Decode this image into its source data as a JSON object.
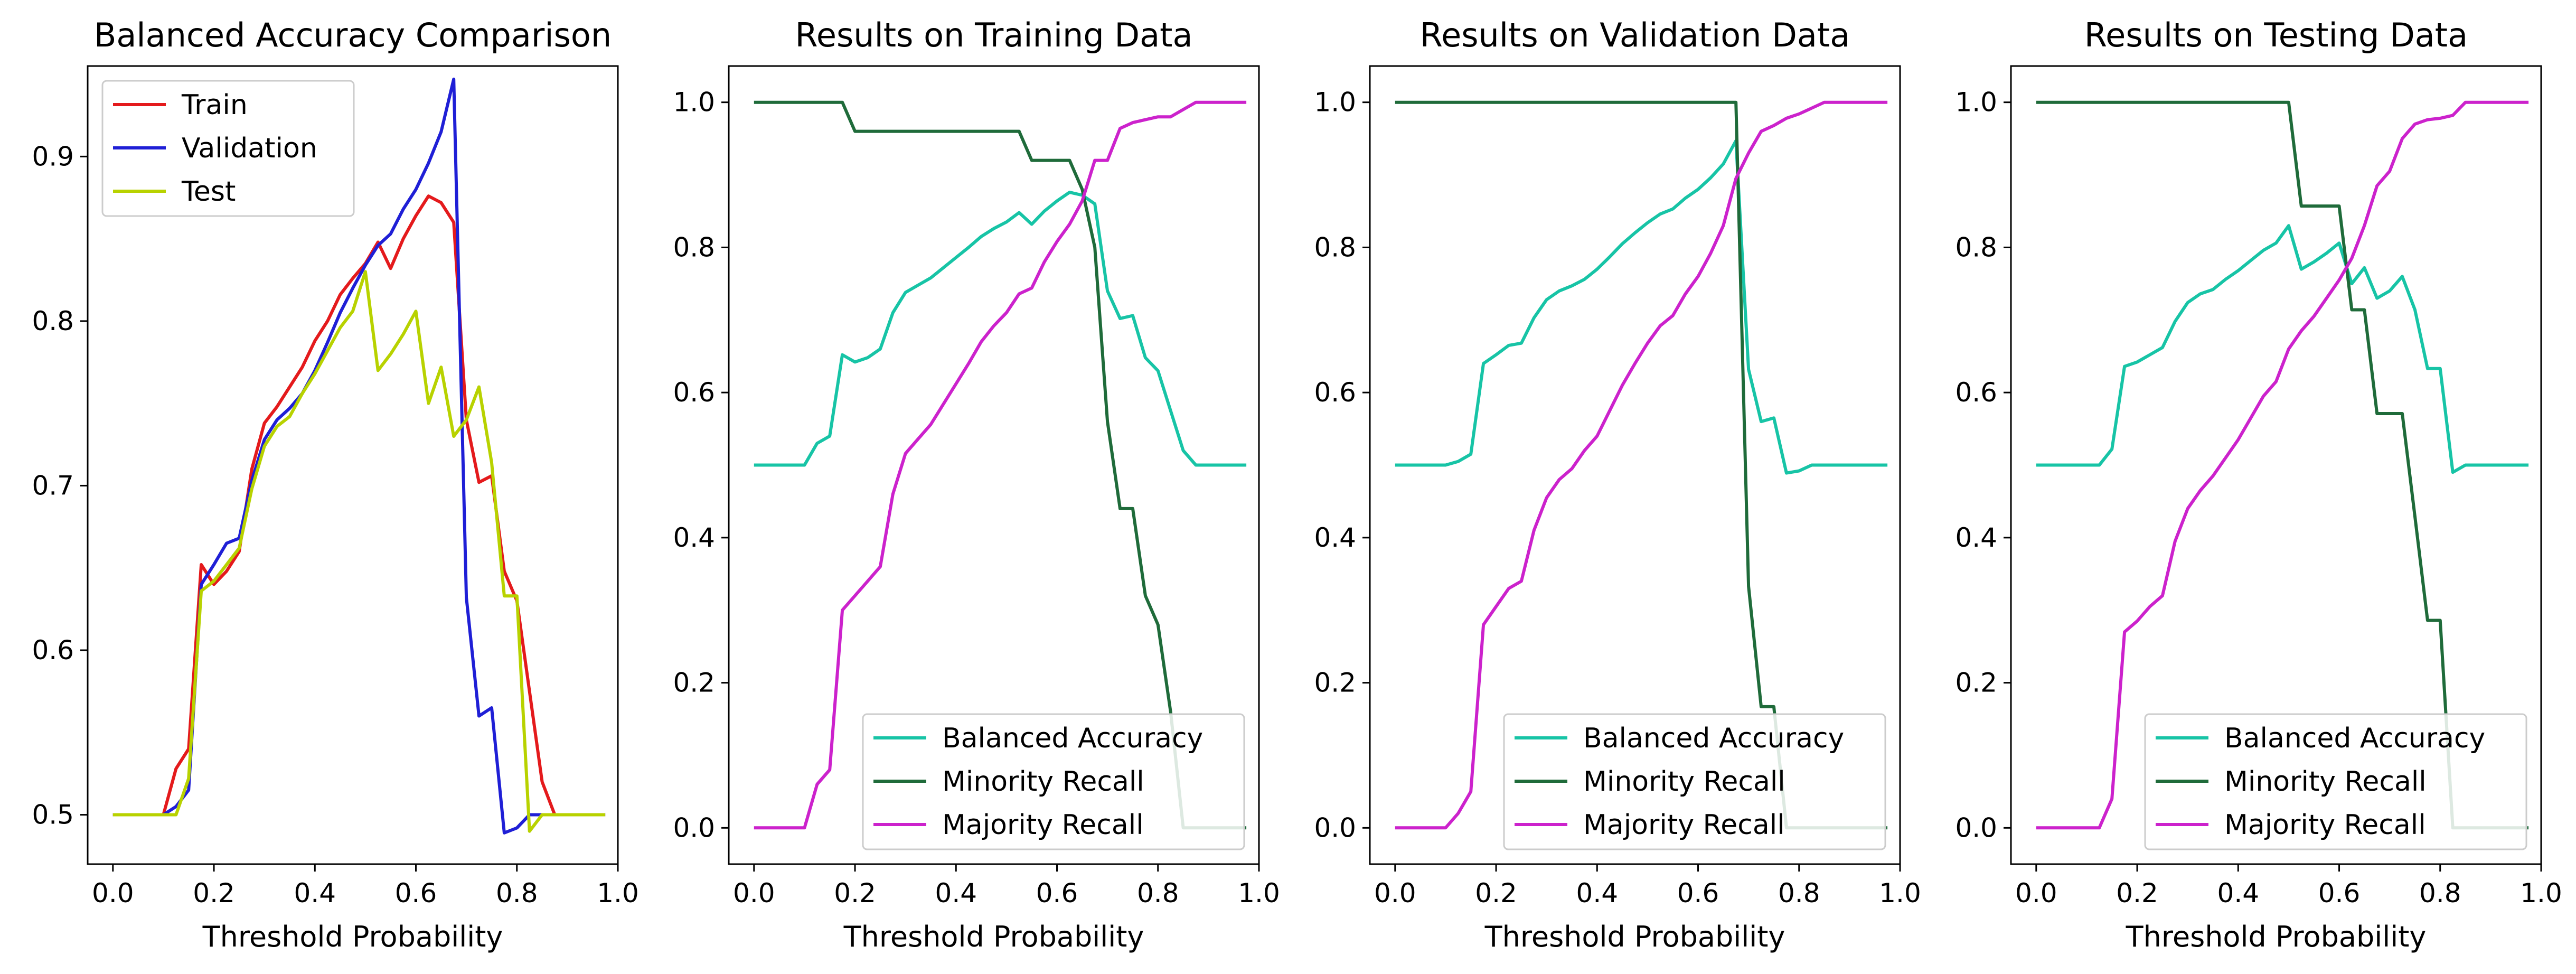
{
  "figure": {
    "panel_titles": [
      "Balanced Accuracy Comparison",
      "Results on Training Data",
      "Results on Validation Data",
      "Results on Testing Data"
    ],
    "xlabel": "Threshold Probability"
  },
  "chart_data": [
    {
      "type": "line",
      "title": "Balanced Accuracy Comparison",
      "xlabel": "Threshold Probability",
      "ylabel": "",
      "xlim": [
        -0.05,
        1.0
      ],
      "ylim": [
        0.47,
        0.955
      ],
      "xticks": [
        "0.0",
        "0.2",
        "0.4",
        "0.6",
        "0.8",
        "1.0"
      ],
      "yticks": [
        "0.5",
        "0.6",
        "0.7",
        "0.8",
        "0.9"
      ],
      "grid": false,
      "legend_position": "upper-left",
      "x": [
        0.0,
        0.025,
        0.05,
        0.075,
        0.1,
        0.125,
        0.15,
        0.175,
        0.2,
        0.225,
        0.25,
        0.275,
        0.3,
        0.325,
        0.35,
        0.375,
        0.4,
        0.425,
        0.45,
        0.475,
        0.5,
        0.525,
        0.55,
        0.575,
        0.6,
        0.625,
        0.65,
        0.675,
        0.7,
        0.725,
        0.75,
        0.775,
        0.8,
        0.825,
        0.85,
        0.875,
        0.9,
        0.925,
        0.95,
        0.975
      ],
      "series": [
        {
          "name": "Train",
          "color": "#e41a1c",
          "values": [
            0.5,
            0.5,
            0.5,
            0.5,
            0.5,
            0.528,
            0.54,
            0.652,
            0.64,
            0.648,
            0.66,
            0.71,
            0.738,
            0.748,
            0.76,
            0.772,
            0.788,
            0.8,
            0.816,
            0.826,
            0.835,
            0.848,
            0.832,
            0.85,
            0.864,
            0.876,
            0.872,
            0.86,
            0.74,
            0.702,
            0.706,
            0.648,
            0.63,
            0.575,
            0.52,
            0.5,
            0.5,
            0.5,
            0.5,
            0.5
          ]
        },
        {
          "name": "Validation",
          "color": "#1f1fd6",
          "values": [
            0.5,
            0.5,
            0.5,
            0.5,
            0.5,
            0.505,
            0.515,
            0.64,
            0.652,
            0.665,
            0.668,
            0.703,
            0.728,
            0.74,
            0.747,
            0.756,
            0.77,
            0.787,
            0.805,
            0.82,
            0.834,
            0.846,
            0.853,
            0.868,
            0.88,
            0.896,
            0.915,
            0.947,
            0.632,
            0.56,
            0.565,
            0.489,
            0.492,
            0.5,
            0.5,
            0.5,
            0.5,
            0.5,
            0.5,
            0.5
          ]
        },
        {
          "name": "Test",
          "color": "#b8d200",
          "values": [
            0.5,
            0.5,
            0.5,
            0.5,
            0.5,
            0.5,
            0.522,
            0.636,
            0.642,
            0.652,
            0.662,
            0.698,
            0.724,
            0.736,
            0.742,
            0.756,
            0.768,
            0.782,
            0.796,
            0.806,
            0.83,
            0.77,
            0.78,
            0.792,
            0.806,
            0.75,
            0.772,
            0.73,
            0.74,
            0.76,
            0.714,
            0.633,
            0.633,
            0.49,
            0.5,
            0.5,
            0.5,
            0.5,
            0.5,
            0.5
          ]
        }
      ]
    },
    {
      "type": "line",
      "title": "Results on Training Data",
      "xlabel": "Threshold Probability",
      "ylabel": "",
      "xlim": [
        -0.05,
        1.0
      ],
      "ylim": [
        -0.05,
        1.05
      ],
      "xticks": [
        "0.0",
        "0.2",
        "0.4",
        "0.6",
        "0.8",
        "1.0"
      ],
      "yticks": [
        "0.0",
        "0.2",
        "0.4",
        "0.6",
        "0.8",
        "1.0"
      ],
      "grid": false,
      "legend_position": "lower-right",
      "x": [
        0.0,
        0.025,
        0.05,
        0.075,
        0.1,
        0.125,
        0.15,
        0.175,
        0.2,
        0.225,
        0.25,
        0.275,
        0.3,
        0.325,
        0.35,
        0.375,
        0.4,
        0.425,
        0.45,
        0.475,
        0.5,
        0.525,
        0.55,
        0.575,
        0.6,
        0.625,
        0.65,
        0.675,
        0.7,
        0.725,
        0.75,
        0.775,
        0.8,
        0.825,
        0.85,
        0.875,
        0.9,
        0.925,
        0.95,
        0.975
      ],
      "series": [
        {
          "name": "Balanced Accuracy",
          "color": "#17c4a6",
          "values": [
            0.5,
            0.5,
            0.5,
            0.5,
            0.5,
            0.53,
            0.54,
            0.652,
            0.642,
            0.648,
            0.66,
            0.71,
            0.738,
            0.748,
            0.758,
            0.772,
            0.786,
            0.8,
            0.815,
            0.826,
            0.835,
            0.848,
            0.832,
            0.85,
            0.864,
            0.876,
            0.872,
            0.86,
            0.74,
            0.702,
            0.706,
            0.648,
            0.63,
            0.575,
            0.52,
            0.5,
            0.5,
            0.5,
            0.5,
            0.5
          ]
        },
        {
          "name": "Minority Recall",
          "color": "#1f6b3a",
          "values": [
            1.0,
            1.0,
            1.0,
            1.0,
            1.0,
            1.0,
            1.0,
            1.0,
            0.96,
            0.96,
            0.96,
            0.96,
            0.96,
            0.96,
            0.96,
            0.96,
            0.96,
            0.96,
            0.96,
            0.96,
            0.96,
            0.96,
            0.92,
            0.92,
            0.92,
            0.92,
            0.88,
            0.8,
            0.56,
            0.44,
            0.44,
            0.32,
            0.28,
            0.16,
            0.0,
            0.0,
            0.0,
            0.0,
            0.0,
            0.0
          ]
        },
        {
          "name": "Majority Recall",
          "color": "#cc22cc",
          "values": [
            0.0,
            0.0,
            0.0,
            0.0,
            0.0,
            0.06,
            0.08,
            0.3,
            0.32,
            0.34,
            0.36,
            0.46,
            0.516,
            0.536,
            0.556,
            0.584,
            0.612,
            0.64,
            0.67,
            0.692,
            0.71,
            0.736,
            0.744,
            0.78,
            0.808,
            0.832,
            0.864,
            0.92,
            0.92,
            0.964,
            0.972,
            0.976,
            0.98,
            0.98,
            0.99,
            1.0,
            1.0,
            1.0,
            1.0,
            1.0
          ]
        }
      ]
    },
    {
      "type": "line",
      "title": "Results on Validation Data",
      "xlabel": "Threshold Probability",
      "ylabel": "",
      "xlim": [
        -0.05,
        1.0
      ],
      "ylim": [
        -0.05,
        1.05
      ],
      "xticks": [
        "0.0",
        "0.2",
        "0.4",
        "0.6",
        "0.8",
        "1.0"
      ],
      "yticks": [
        "0.0",
        "0.2",
        "0.4",
        "0.6",
        "0.8",
        "1.0"
      ],
      "grid": false,
      "legend_position": "lower-right",
      "x": [
        0.0,
        0.025,
        0.05,
        0.075,
        0.1,
        0.125,
        0.15,
        0.175,
        0.2,
        0.225,
        0.25,
        0.275,
        0.3,
        0.325,
        0.35,
        0.375,
        0.4,
        0.425,
        0.45,
        0.475,
        0.5,
        0.525,
        0.55,
        0.575,
        0.6,
        0.625,
        0.65,
        0.675,
        0.7,
        0.725,
        0.75,
        0.775,
        0.8,
        0.825,
        0.85,
        0.875,
        0.9,
        0.925,
        0.95,
        0.975
      ],
      "series": [
        {
          "name": "Balanced Accuracy",
          "color": "#17c4a6",
          "values": [
            0.5,
            0.5,
            0.5,
            0.5,
            0.5,
            0.505,
            0.515,
            0.64,
            0.652,
            0.665,
            0.668,
            0.703,
            0.728,
            0.74,
            0.747,
            0.756,
            0.77,
            0.787,
            0.805,
            0.82,
            0.834,
            0.846,
            0.853,
            0.868,
            0.88,
            0.896,
            0.915,
            0.947,
            0.632,
            0.56,
            0.565,
            0.489,
            0.492,
            0.5,
            0.5,
            0.5,
            0.5,
            0.5,
            0.5,
            0.5
          ]
        },
        {
          "name": "Minority Recall",
          "color": "#1f6b3a",
          "values": [
            1.0,
            1.0,
            1.0,
            1.0,
            1.0,
            1.0,
            1.0,
            1.0,
            1.0,
            1.0,
            1.0,
            1.0,
            1.0,
            1.0,
            1.0,
            1.0,
            1.0,
            1.0,
            1.0,
            1.0,
            1.0,
            1.0,
            1.0,
            1.0,
            1.0,
            1.0,
            1.0,
            1.0,
            0.333,
            0.167,
            0.167,
            0.0,
            0.0,
            0.0,
            0.0,
            0.0,
            0.0,
            0.0,
            0.0,
            0.0
          ]
        },
        {
          "name": "Majority Recall",
          "color": "#cc22cc",
          "values": [
            0.0,
            0.0,
            0.0,
            0.0,
            0.0,
            0.02,
            0.05,
            0.28,
            0.305,
            0.33,
            0.34,
            0.41,
            0.455,
            0.48,
            0.495,
            0.52,
            0.54,
            0.575,
            0.61,
            0.64,
            0.668,
            0.692,
            0.706,
            0.736,
            0.76,
            0.792,
            0.83,
            0.895,
            0.93,
            0.96,
            0.968,
            0.978,
            0.984,
            0.992,
            1.0,
            1.0,
            1.0,
            1.0,
            1.0,
            1.0
          ]
        }
      ]
    },
    {
      "type": "line",
      "title": "Results on Testing Data",
      "xlabel": "Threshold Probability",
      "ylabel": "",
      "xlim": [
        -0.05,
        1.0
      ],
      "ylim": [
        -0.05,
        1.05
      ],
      "xticks": [
        "0.0",
        "0.2",
        "0.4",
        "0.6",
        "0.8",
        "1.0"
      ],
      "yticks": [
        "0.0",
        "0.2",
        "0.4",
        "0.6",
        "0.8",
        "1.0"
      ],
      "grid": false,
      "legend_position": "lower-right",
      "x": [
        0.0,
        0.025,
        0.05,
        0.075,
        0.1,
        0.125,
        0.15,
        0.175,
        0.2,
        0.225,
        0.25,
        0.275,
        0.3,
        0.325,
        0.35,
        0.375,
        0.4,
        0.425,
        0.45,
        0.475,
        0.5,
        0.525,
        0.55,
        0.575,
        0.6,
        0.625,
        0.65,
        0.675,
        0.7,
        0.725,
        0.75,
        0.775,
        0.8,
        0.825,
        0.85,
        0.875,
        0.9,
        0.925,
        0.95,
        0.975
      ],
      "series": [
        {
          "name": "Balanced Accuracy",
          "color": "#17c4a6",
          "values": [
            0.5,
            0.5,
            0.5,
            0.5,
            0.5,
            0.5,
            0.522,
            0.636,
            0.642,
            0.652,
            0.662,
            0.698,
            0.724,
            0.736,
            0.742,
            0.756,
            0.768,
            0.782,
            0.796,
            0.806,
            0.83,
            0.77,
            0.78,
            0.792,
            0.806,
            0.75,
            0.772,
            0.73,
            0.74,
            0.76,
            0.714,
            0.633,
            0.633,
            0.49,
            0.5,
            0.5,
            0.5,
            0.5,
            0.5,
            0.5
          ]
        },
        {
          "name": "Minority Recall",
          "color": "#1f6b3a",
          "values": [
            1.0,
            1.0,
            1.0,
            1.0,
            1.0,
            1.0,
            1.0,
            1.0,
            1.0,
            1.0,
            1.0,
            1.0,
            1.0,
            1.0,
            1.0,
            1.0,
            1.0,
            1.0,
            1.0,
            1.0,
            1.0,
            0.857,
            0.857,
            0.857,
            0.857,
            0.714,
            0.714,
            0.571,
            0.571,
            0.571,
            0.429,
            0.286,
            0.286,
            0.0,
            0.0,
            0.0,
            0.0,
            0.0,
            0.0,
            0.0
          ]
        },
        {
          "name": "Majority Recall",
          "color": "#cc22cc",
          "values": [
            0.0,
            0.0,
            0.0,
            0.0,
            0.0,
            0.0,
            0.04,
            0.27,
            0.285,
            0.305,
            0.32,
            0.395,
            0.44,
            0.465,
            0.485,
            0.51,
            0.535,
            0.565,
            0.595,
            0.615,
            0.66,
            0.685,
            0.705,
            0.73,
            0.755,
            0.785,
            0.83,
            0.885,
            0.905,
            0.95,
            0.97,
            0.976,
            0.978,
            0.982,
            1.0,
            1.0,
            1.0,
            1.0,
            1.0,
            1.0
          ]
        }
      ]
    }
  ]
}
